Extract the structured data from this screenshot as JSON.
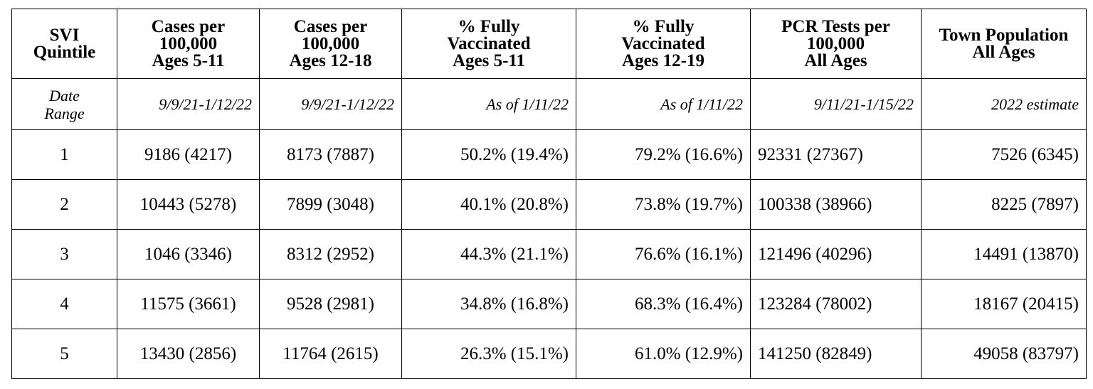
{
  "table": {
    "headers": [
      [
        "SVI",
        "Quintile"
      ],
      [
        "Cases per",
        "100,000",
        "Ages 5-11"
      ],
      [
        "Cases per",
        "100,000",
        "Ages 12-18"
      ],
      [
        "% Fully",
        "Vaccinated",
        "Ages 5-11"
      ],
      [
        "% Fully",
        "Vaccinated",
        "Ages 12-19"
      ],
      [
        "PCR Tests per",
        "100,000",
        "All Ages"
      ],
      [
        "Town Population",
        "All Ages"
      ]
    ],
    "date_range": {
      "label": [
        "Date",
        "Range"
      ],
      "values": [
        "9/9/21-1/12/22",
        "9/9/21-1/12/22",
        "As of 1/11/22",
        "As of 1/11/22",
        "9/11/21-1/15/22",
        "2022 estimate"
      ]
    },
    "rows": [
      [
        "1",
        "9186 (4217)",
        "8173 (7887)",
        "50.2% (19.4%)",
        "79.2% (16.6%)",
        "92331 (27367)",
        "7526 (6345)"
      ],
      [
        "2",
        "10443 (5278)",
        "7899 (3048)",
        "40.1% (20.8%)",
        "73.8% (19.7%)",
        "100338 (38966)",
        "8225 (7897)"
      ],
      [
        "3",
        "1046 (3346)",
        "8312 (2952)",
        "44.3% (21.1%)",
        "76.6% (16.1%)",
        "121496 (40296)",
        "14491 (13870)"
      ],
      [
        "4",
        "11575 (3661)",
        "9528 (2981)",
        "34.8% (16.8%)",
        "68.3% (16.4%)",
        "123284 (78002)",
        "18167 (20415)"
      ],
      [
        "5",
        "13430 (2856)",
        "11764 (2615)",
        "26.3% (15.1%)",
        "61.0% (12.9%)",
        "141250 (82849)",
        "49058 (83797)"
      ]
    ]
  }
}
